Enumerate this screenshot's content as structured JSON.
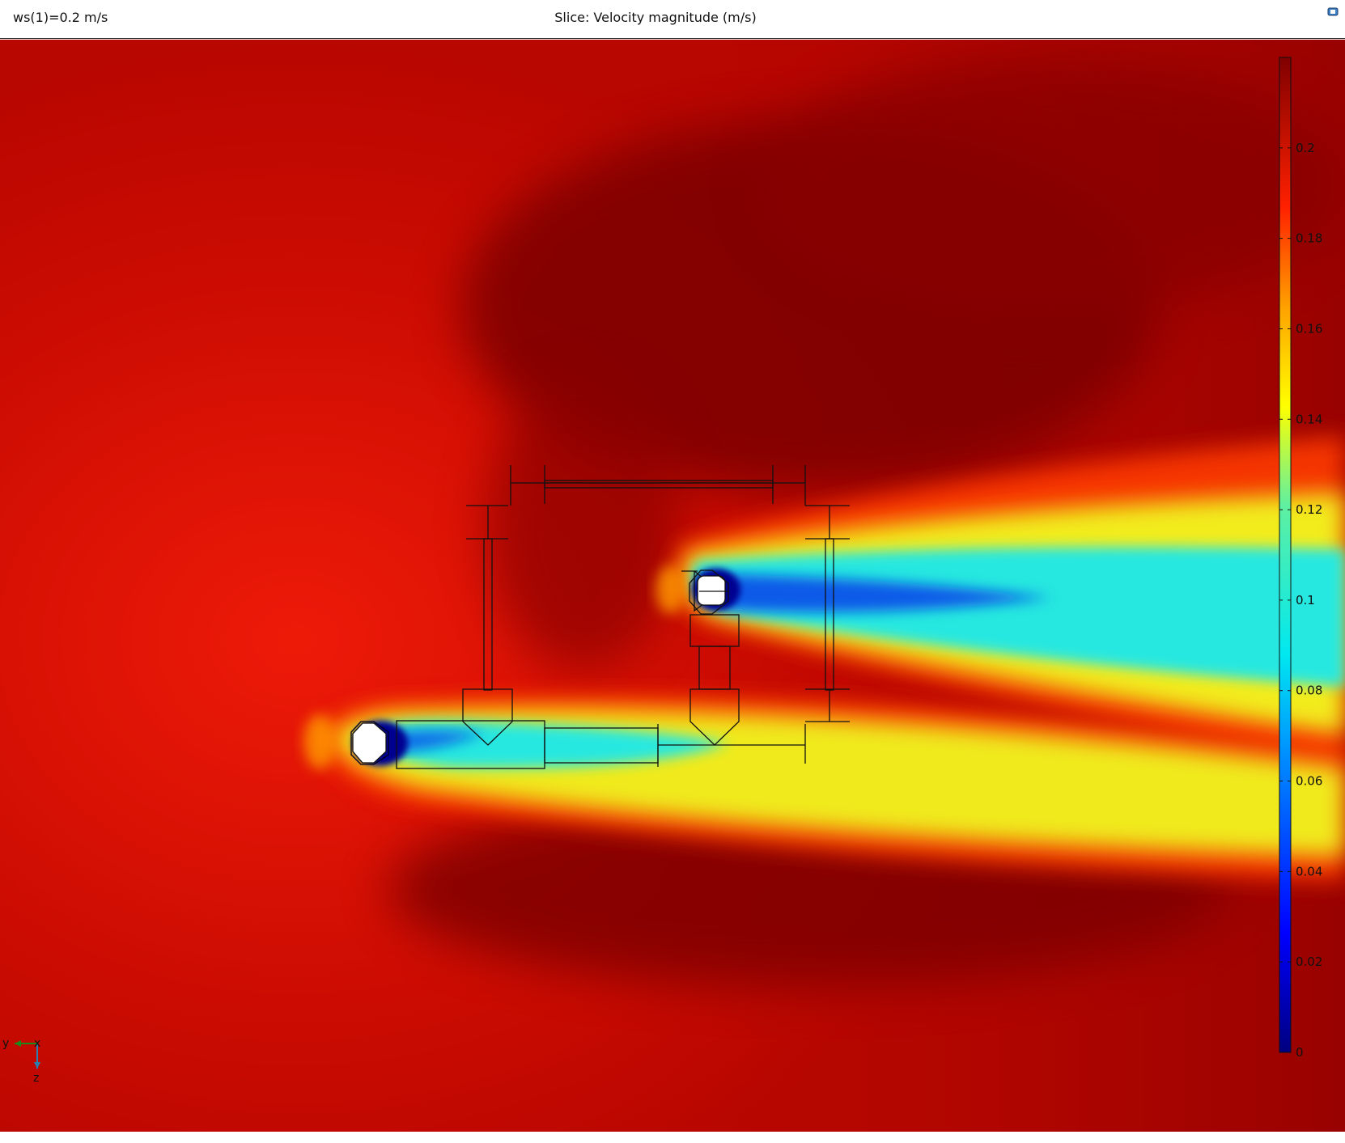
{
  "header": {
    "parameter_label": "ws(1)=0.2 m/s",
    "title": "Slice: Velocity magnitude (m/s)"
  },
  "toolbar": {
    "icons": [
      "camera-icon"
    ]
  },
  "axis_triad": {
    "labels": [
      "y",
      "x",
      "z"
    ]
  },
  "colorbar": {
    "colormap": "rainbow",
    "range": [
      0,
      0.22
    ],
    "ticks": [
      {
        "value": 0.2,
        "label": "0.2"
      },
      {
        "value": 0.18,
        "label": "0.18"
      },
      {
        "value": 0.16,
        "label": "0.16"
      },
      {
        "value": 0.14,
        "label": "0.14"
      },
      {
        "value": 0.12,
        "label": "0.12"
      },
      {
        "value": 0.1,
        "label": "0.1"
      },
      {
        "value": 0.08,
        "label": "0.08"
      },
      {
        "value": 0.06,
        "label": "0.06"
      },
      {
        "value": 0.04,
        "label": "0.04"
      },
      {
        "value": 0.02,
        "label": "0.02"
      },
      {
        "value": 0,
        "label": "0"
      }
    ]
  },
  "colors": {
    "far_field": "#c80a00",
    "dark_region": "#800000",
    "wake_yellow": "#e8ee1a",
    "wake_cyan": "#20e6e6",
    "stagnation_blue": "#000090",
    "outline": "#111111"
  }
}
